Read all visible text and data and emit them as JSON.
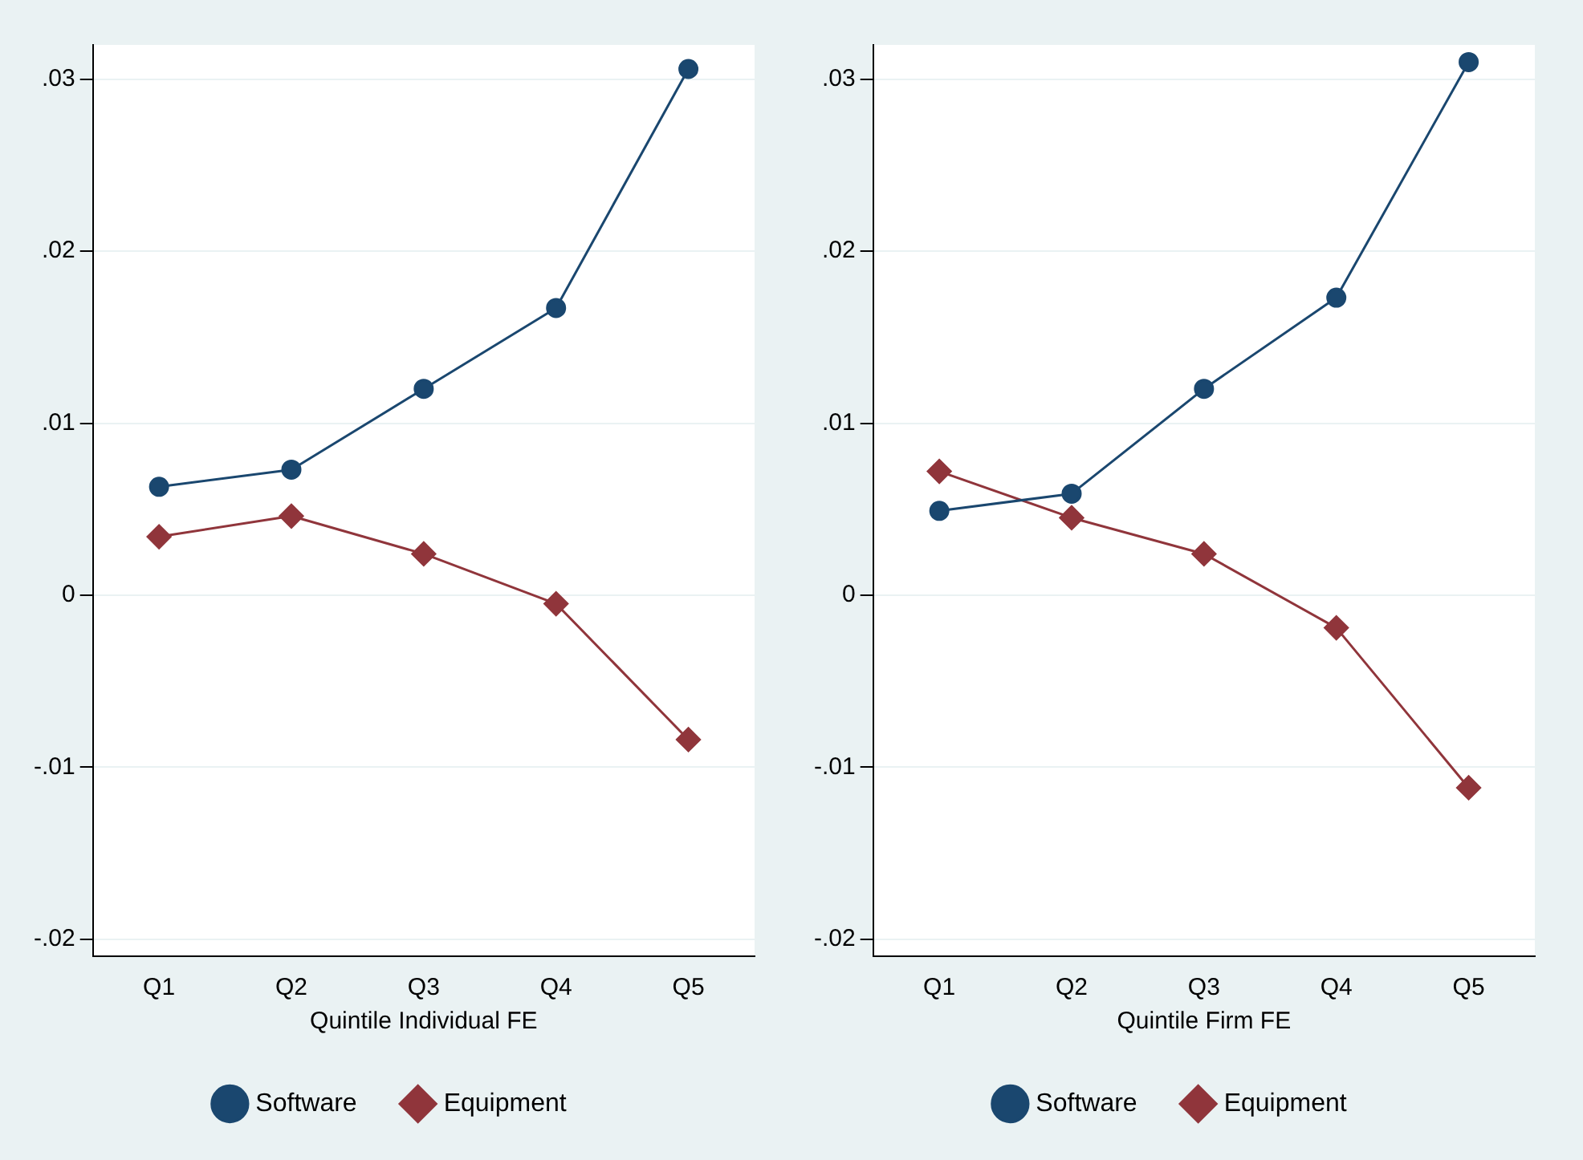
{
  "chart_data": [
    {
      "type": "line",
      "xlabel": "Quintile Individual FE",
      "categories": [
        "Q1",
        "Q2",
        "Q3",
        "Q4",
        "Q5"
      ],
      "series": [
        {
          "name": "Software",
          "color": "#1a476f",
          "marker": "circle",
          "values": [
            0.0063,
            0.0073,
            0.012,
            0.0167,
            0.0306
          ]
        },
        {
          "name": "Equipment",
          "color": "#90353b",
          "marker": "diamond",
          "values": [
            0.0034,
            0.0046,
            0.0024,
            -0.0005,
            -0.0084
          ]
        }
      ],
      "ylim": [
        -0.021,
        0.032
      ],
      "yticks": [
        {
          "value": -0.02,
          "label": "-.02"
        },
        {
          "value": -0.01,
          "label": "-.01"
        },
        0,
        {
          "value": 0.01,
          "label": ".01"
        },
        {
          "value": 0.02,
          "label": ".02"
        },
        {
          "value": 0.03,
          "label": ".03"
        }
      ],
      "grid": "y",
      "legend": "bottom",
      "line_style": "solid"
    },
    {
      "type": "line",
      "xlabel": "Quintile Firm FE",
      "categories": [
        "Q1",
        "Q2",
        "Q3",
        "Q4",
        "Q5"
      ],
      "series": [
        {
          "name": "Software",
          "color": "#1a476f",
          "marker": "circle",
          "values": [
            0.0049,
            0.0059,
            0.012,
            0.0173,
            0.031
          ]
        },
        {
          "name": "Equipment",
          "color": "#90353b",
          "marker": "diamond",
          "values": [
            0.0072,
            0.0045,
            0.0024,
            -0.0019,
            -0.0112
          ]
        }
      ],
      "ylim": [
        -0.021,
        0.032
      ],
      "yticks": [
        {
          "value": -0.02,
          "label": "-.02"
        },
        {
          "value": -0.01,
          "label": "-.01"
        },
        0,
        {
          "value": 0.01,
          "label": ".01"
        },
        {
          "value": 0.02,
          "label": ".02"
        },
        {
          "value": 0.03,
          "label": ".03"
        }
      ],
      "grid": "y",
      "legend": "bottom",
      "line_style": "solid"
    }
  ]
}
